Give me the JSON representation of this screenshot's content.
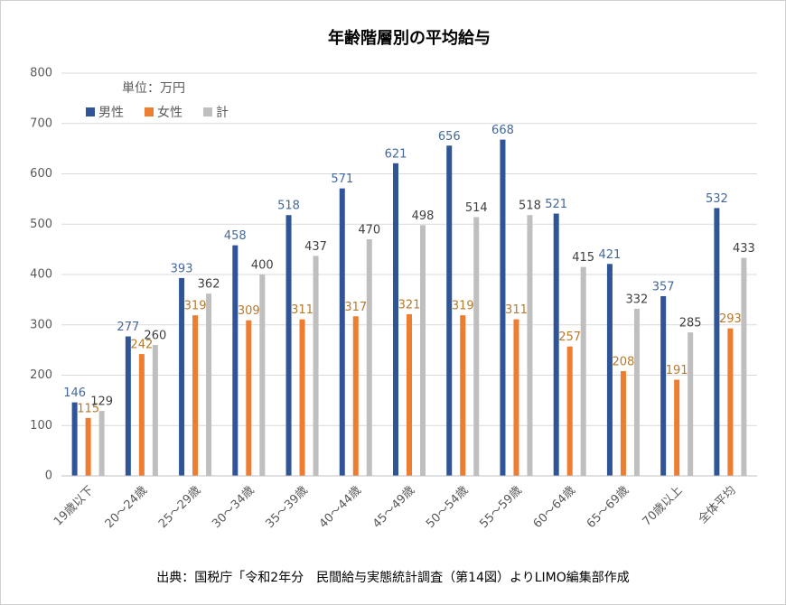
{
  "chart_data": {
    "type": "bar",
    "title": "年齢階層別の平均給与",
    "unit_label": "単位：万円",
    "source": "出典：国税庁「令和2年分　民間給与実態統計調査（第14図）よりLIMO編集部作成",
    "categories": [
      "19歳以下",
      "20〜24歳",
      "25〜29歳",
      "30〜34歳",
      "35〜39歳",
      "40〜44歳",
      "45〜49歳",
      "50〜54歳",
      "55〜59歳",
      "60〜64歳",
      "65〜69歳",
      "70歳以上",
      "全体平均"
    ],
    "series": [
      {
        "name": "男性",
        "color": "#2f5597",
        "label_color": "#44689a",
        "values": [
          146,
          277,
          393,
          458,
          518,
          571,
          621,
          656,
          668,
          521,
          421,
          357,
          532
        ]
      },
      {
        "name": "女性",
        "color": "#ed7d31",
        "label_color": "#b8792c",
        "values": [
          115,
          242,
          319,
          309,
          311,
          317,
          321,
          319,
          311,
          257,
          208,
          191,
          293
        ]
      },
      {
        "name": "計",
        "color": "#bfbfbf",
        "label_color": "#404040",
        "values": [
          129,
          260,
          362,
          400,
          437,
          470,
          498,
          514,
          518,
          415,
          332,
          285,
          433
        ]
      }
    ],
    "ylim": [
      0,
      800
    ],
    "yticks": [
      0,
      100,
      200,
      300,
      400,
      500,
      600,
      700,
      800
    ],
    "grid": true
  }
}
